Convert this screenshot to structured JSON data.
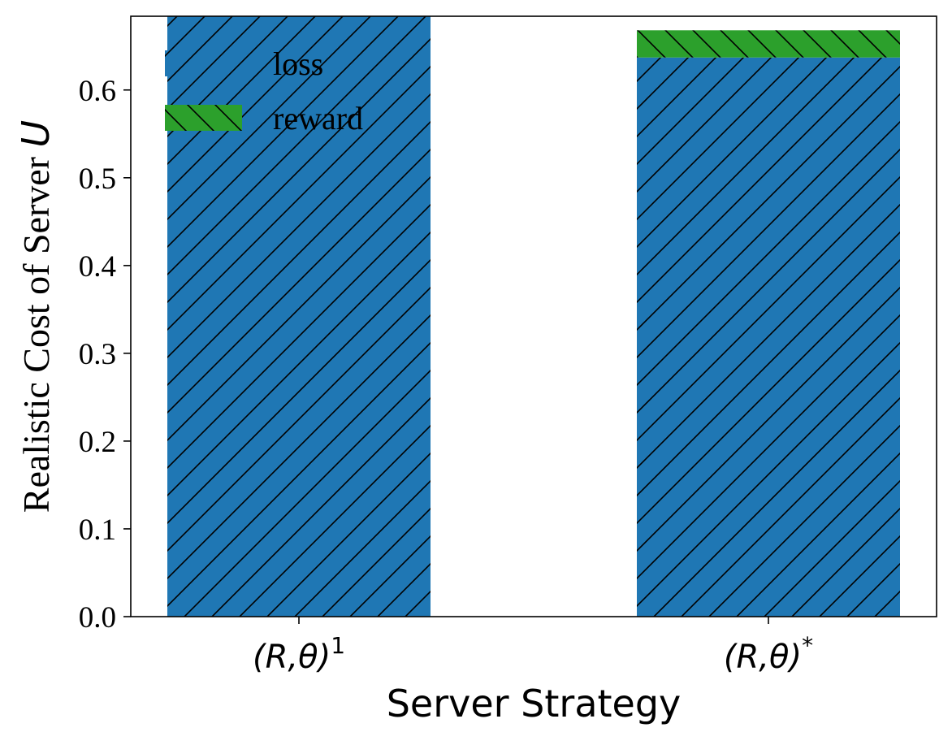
{
  "chart_data": {
    "type": "bar",
    "stacked": true,
    "categories": [
      "(R,θ)^1",
      "(R,θ)^*"
    ],
    "category_tick_labels": [
      {
        "base": "(R,θ)",
        "sup": "1"
      },
      {
        "base": "(R,θ)",
        "sup": "*"
      }
    ],
    "series": [
      {
        "name": "loss",
        "values": [
          0.684,
          0.637
        ],
        "color": "#1f77b4",
        "hatch": "forward-diagonal"
      },
      {
        "name": "reward",
        "values": [
          0.0,
          0.031
        ],
        "color": "#2ca02c",
        "hatch": "back-diagonal"
      }
    ],
    "xlabel": "Server Strategy",
    "ylabel": {
      "text": "Realistic Cost of Server ",
      "symbol": "U"
    },
    "ylim": [
      0,
      0.684
    ],
    "yticks": [
      0.0,
      0.1,
      0.2,
      0.3,
      0.4,
      0.5,
      0.6
    ],
    "ytick_labels": [
      "0.0",
      "0.1",
      "0.2",
      "0.3",
      "0.4",
      "0.5",
      "0.6"
    ],
    "legend": {
      "placement": "top-left",
      "entries": [
        "loss",
        "reward"
      ]
    },
    "grid": false
  }
}
